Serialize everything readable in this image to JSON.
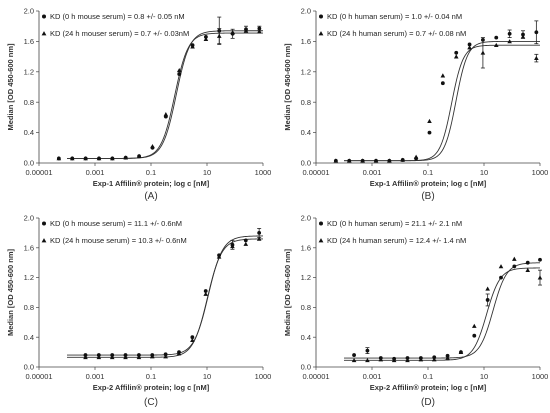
{
  "figure": {
    "panel_labels": [
      "(A)",
      "(B)",
      "(C)",
      "(D)"
    ]
  },
  "chart_data": [
    {
      "type": "scatter",
      "panel": "(A)",
      "xlabel": "Exp-1 Affilin® protein; log c [nM]",
      "ylabel": "Median [OD 450-600 nm]",
      "xscale": "log",
      "xlim": [
        1e-05,
        1000
      ],
      "ylim": [
        0,
        2.0
      ],
      "x_ticks": [
        "0.00001",
        "0.001",
        "0.1",
        "10",
        "1000"
      ],
      "y_ticks": [
        "0.0",
        "0.4",
        "0.8",
        "1.2",
        "1.6",
        "2.0"
      ],
      "grid": false,
      "legend_position": "top-left",
      "series": [
        {
          "name": "KD (0 h mouse serum) = 0.8 +/- 0.05 nM",
          "marker": "circle",
          "fit": {
            "bottom": 0.06,
            "top": 1.74,
            "kd": 0.8,
            "hill": 1.8
          },
          "points": [
            {
              "x": 5.12e-05,
              "y": 0.06
            },
            {
              "x": 0.000154,
              "y": 0.06
            },
            {
              "x": 0.000463,
              "y": 0.06
            },
            {
              "x": 0.00139,
              "y": 0.06
            },
            {
              "x": 0.00417,
              "y": 0.06
            },
            {
              "x": 0.0125,
              "y": 0.07
            },
            {
              "x": 0.0376,
              "y": 0.09
            },
            {
              "x": 0.113,
              "y": 0.2
            },
            {
              "x": 0.339,
              "y": 0.61
            },
            {
              "x": 1.02,
              "y": 1.17
            },
            {
              "x": 3.05,
              "y": 1.55
            },
            {
              "x": 9.14,
              "y": 1.66
            },
            {
              "x": 27.4,
              "y": 1.74,
              "err": 0.18
            },
            {
              "x": 82.3,
              "y": 1.7,
              "err": 0.06
            },
            {
              "x": 247,
              "y": 1.76,
              "err": 0.04
            },
            {
              "x": 741,
              "y": 1.77,
              "err": 0.03
            }
          ]
        },
        {
          "name": "KD (24 h mouser serum) = 0.7 +/- 0.03nM",
          "marker": "triangle",
          "fit": {
            "bottom": 0.06,
            "top": 1.71,
            "kd": 0.7,
            "hill": 1.8
          },
          "points": [
            {
              "x": 5.12e-05,
              "y": 0.06
            },
            {
              "x": 0.000154,
              "y": 0.06
            },
            {
              "x": 0.000463,
              "y": 0.06
            },
            {
              "x": 0.00139,
              "y": 0.06
            },
            {
              "x": 0.00417,
              "y": 0.06
            },
            {
              "x": 0.0125,
              "y": 0.07
            },
            {
              "x": 0.0376,
              "y": 0.09
            },
            {
              "x": 0.113,
              "y": 0.22
            },
            {
              "x": 0.339,
              "y": 0.64
            },
            {
              "x": 1.02,
              "y": 1.22
            },
            {
              "x": 3.05,
              "y": 1.53
            },
            {
              "x": 9.14,
              "y": 1.63
            },
            {
              "x": 27.4,
              "y": 1.67,
              "err": 0.1
            },
            {
              "x": 82.3,
              "y": 1.72
            },
            {
              "x": 247,
              "y": 1.74
            },
            {
              "x": 741,
              "y": 1.73
            }
          ]
        }
      ]
    },
    {
      "type": "scatter",
      "panel": "(B)",
      "xlabel": "Exp-1 Affilin® protein; log c [nM]",
      "ylabel": "Median [OD 450-600 nm]",
      "xscale": "log",
      "xlim": [
        1e-05,
        1000
      ],
      "ylim": [
        0,
        2.0
      ],
      "x_ticks": [
        "0.00001",
        "0.001",
        "0.1",
        "10",
        "1000"
      ],
      "y_ticks": [
        "0.0",
        "0.4",
        "0.8",
        "1.2",
        "1.6",
        "2.0"
      ],
      "grid": false,
      "legend_position": "top-left",
      "series": [
        {
          "name": "KD (0 h human serum) = 1.0 +/- 0.04 nM",
          "marker": "circle",
          "fit": {
            "bottom": 0.03,
            "top": 1.6,
            "kd": 1.0,
            "hill": 2.1
          },
          "points": [
            {
              "x": 5.12e-05,
              "y": 0.03
            },
            {
              "x": 0.000154,
              "y": 0.03
            },
            {
              "x": 0.000463,
              "y": 0.03
            },
            {
              "x": 0.00139,
              "y": 0.03
            },
            {
              "x": 0.00417,
              "y": 0.03
            },
            {
              "x": 0.0125,
              "y": 0.04
            },
            {
              "x": 0.0376,
              "y": 0.06
            },
            {
              "x": 0.113,
              "y": 0.4
            },
            {
              "x": 0.339,
              "y": 1.05
            },
            {
              "x": 1.02,
              "y": 1.45
            },
            {
              "x": 3.05,
              "y": 1.56
            },
            {
              "x": 9.14,
              "y": 1.62
            },
            {
              "x": 27.4,
              "y": 1.65
            },
            {
              "x": 82.3,
              "y": 1.7,
              "err": 0.05
            },
            {
              "x": 247,
              "y": 1.69,
              "err": 0.05
            },
            {
              "x": 741,
              "y": 1.72,
              "err": 0.15
            }
          ]
        },
        {
          "name": "KD (24 h human serum) = 0.7 +/- 0.08 nM",
          "marker": "triangle",
          "fit": {
            "bottom": 0.03,
            "top": 1.55,
            "kd": 0.7,
            "hill": 2.1
          },
          "points": [
            {
              "x": 5.12e-05,
              "y": 0.03
            },
            {
              "x": 0.000154,
              "y": 0.03
            },
            {
              "x": 0.000463,
              "y": 0.03
            },
            {
              "x": 0.00139,
              "y": 0.03
            },
            {
              "x": 0.00417,
              "y": 0.03
            },
            {
              "x": 0.0125,
              "y": 0.04
            },
            {
              "x": 0.0376,
              "y": 0.08
            },
            {
              "x": 0.113,
              "y": 0.55
            },
            {
              "x": 0.339,
              "y": 1.15
            },
            {
              "x": 1.02,
              "y": 1.4
            },
            {
              "x": 3.05,
              "y": 1.52
            },
            {
              "x": 9.14,
              "y": 1.45,
              "err": 0.2
            },
            {
              "x": 27.4,
              "y": 1.55
            },
            {
              "x": 82.3,
              "y": 1.6
            },
            {
              "x": 247,
              "y": 1.66
            },
            {
              "x": 741,
              "y": 1.38,
              "err": 0.05
            }
          ]
        }
      ]
    },
    {
      "type": "scatter",
      "panel": "(C)",
      "xlabel": "Exp-2 Affilin® protein; log c [nM]",
      "ylabel": "Median [OD 450-600 nm]",
      "xscale": "log",
      "xlim": [
        1e-05,
        1000
      ],
      "ylim": [
        0,
        2.0
      ],
      "x_ticks": [
        "0.00001",
        "0.001",
        "0.1",
        "10",
        "1000"
      ],
      "y_ticks": [
        "0.0",
        "0.4",
        "0.8",
        "1.2",
        "1.6",
        "2.0"
      ],
      "grid": false,
      "legend_position": "top-left",
      "series": [
        {
          "name": "KD (0 h mouse serum) = 11.1 +/- 0.6nM",
          "marker": "circle",
          "fit": {
            "bottom": 0.16,
            "top": 1.76,
            "kd": 11.1,
            "hill": 1.7
          },
          "points": [
            {
              "x": 0.000457,
              "y": 0.16
            },
            {
              "x": 0.00137,
              "y": 0.16
            },
            {
              "x": 0.00412,
              "y": 0.16
            },
            {
              "x": 0.0123,
              "y": 0.16
            },
            {
              "x": 0.037,
              "y": 0.16
            },
            {
              "x": 0.111,
              "y": 0.16
            },
            {
              "x": 0.333,
              "y": 0.17
            },
            {
              "x": 1.0,
              "y": 0.2
            },
            {
              "x": 3.0,
              "y": 0.4
            },
            {
              "x": 9.0,
              "y": 1.02
            },
            {
              "x": 27.0,
              "y": 1.5
            },
            {
              "x": 81.0,
              "y": 1.64,
              "err": 0.06
            },
            {
              "x": 243,
              "y": 1.7
            },
            {
              "x": 729,
              "y": 1.8,
              "err": 0.06
            }
          ]
        },
        {
          "name": "KD (24 h mouse serum) = 10.3 +/- 0.6nM",
          "marker": "triangle",
          "fit": {
            "bottom": 0.13,
            "top": 1.72,
            "kd": 10.3,
            "hill": 1.7
          },
          "points": [
            {
              "x": 0.000457,
              "y": 0.13
            },
            {
              "x": 0.00137,
              "y": 0.13
            },
            {
              "x": 0.00412,
              "y": 0.13
            },
            {
              "x": 0.0123,
              "y": 0.13
            },
            {
              "x": 0.037,
              "y": 0.13
            },
            {
              "x": 0.111,
              "y": 0.14
            },
            {
              "x": 0.333,
              "y": 0.14
            },
            {
              "x": 1.0,
              "y": 0.18
            },
            {
              "x": 3.0,
              "y": 0.36
            },
            {
              "x": 9.0,
              "y": 0.98
            },
            {
              "x": 27.0,
              "y": 1.48
            },
            {
              "x": 81.0,
              "y": 1.62
            },
            {
              "x": 243,
              "y": 1.65
            },
            {
              "x": 729,
              "y": 1.72
            }
          ]
        }
      ]
    },
    {
      "type": "scatter",
      "panel": "(D)",
      "xlabel": "Exp-2 Affilin® protein; log c [nM]",
      "ylabel": "Median [OD 450-600 nm]",
      "xscale": "log",
      "xlim": [
        1e-05,
        1000
      ],
      "ylim": [
        0,
        2.0
      ],
      "x_ticks": [
        "0.00001",
        "0.001",
        "0.1",
        "10",
        "1000"
      ],
      "y_ticks": [
        "0.0",
        "0.4",
        "0.8",
        "1.2",
        "1.6",
        "2.0"
      ],
      "grid": false,
      "legend_position": "top-left",
      "series": [
        {
          "name": "KD (0 h human serum) = 21.1 +/- 2.1 nM",
          "marker": "circle",
          "fit": {
            "bottom": 0.12,
            "top": 1.4,
            "kd": 21.1,
            "hill": 1.8
          },
          "points": [
            {
              "x": 0.000229,
              "y": 0.16
            },
            {
              "x": 0.000686,
              "y": 0.22,
              "err": 0.04
            },
            {
              "x": 0.00206,
              "y": 0.12
            },
            {
              "x": 0.00617,
              "y": 0.11
            },
            {
              "x": 0.0185,
              "y": 0.12
            },
            {
              "x": 0.0556,
              "y": 0.12
            },
            {
              "x": 0.167,
              "y": 0.13
            },
            {
              "x": 0.5,
              "y": 0.15
            },
            {
              "x": 1.5,
              "y": 0.2
            },
            {
              "x": 4.5,
              "y": 0.42
            },
            {
              "x": 13.5,
              "y": 0.9,
              "err": 0.08
            },
            {
              "x": 40.5,
              "y": 1.2
            },
            {
              "x": 121,
              "y": 1.35
            },
            {
              "x": 365,
              "y": 1.4
            },
            {
              "x": 1000,
              "y": 1.44
            }
          ]
        },
        {
          "name": "KD (24 h human serum) = 12.4 +/- 1.4 nM",
          "marker": "triangle",
          "fit": {
            "bottom": 0.09,
            "top": 1.33,
            "kd": 12.4,
            "hill": 1.8
          },
          "points": [
            {
              "x": 0.000229,
              "y": 0.09
            },
            {
              "x": 0.000686,
              "y": 0.09
            },
            {
              "x": 0.00206,
              "y": 0.1
            },
            {
              "x": 0.00617,
              "y": 0.09
            },
            {
              "x": 0.0185,
              "y": 0.09
            },
            {
              "x": 0.0556,
              "y": 0.1
            },
            {
              "x": 0.167,
              "y": 0.1
            },
            {
              "x": 0.5,
              "y": 0.12
            },
            {
              "x": 1.5,
              "y": 0.2
            },
            {
              "x": 4.5,
              "y": 0.55
            },
            {
              "x": 13.5,
              "y": 1.05
            },
            {
              "x": 40.5,
              "y": 1.35
            },
            {
              "x": 121,
              "y": 1.45
            },
            {
              "x": 365,
              "y": 1.3
            },
            {
              "x": 1000,
              "y": 1.2,
              "err": 0.1
            }
          ]
        }
      ]
    }
  ]
}
